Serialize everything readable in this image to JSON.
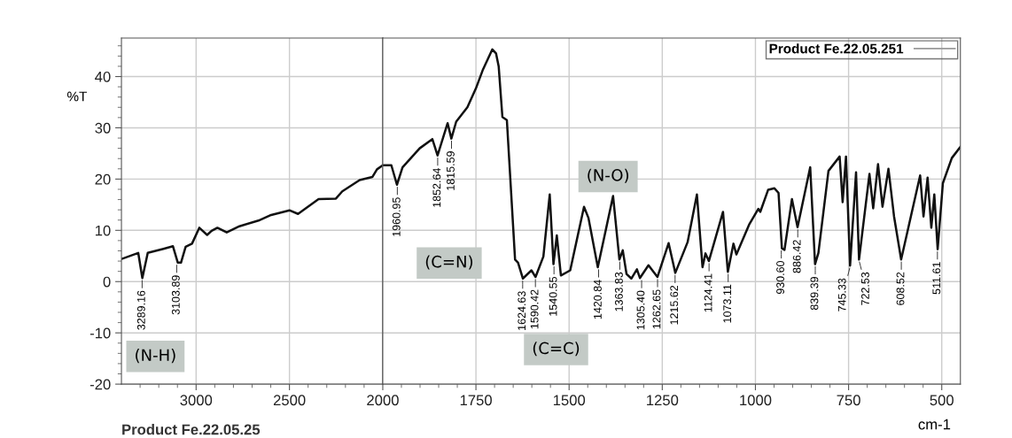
{
  "chart_data": [
    {
      "type": "line",
      "ylabel": "%T",
      "xlim": [
        3400,
        2000
      ],
      "ylim": [
        -20,
        47.5
      ],
      "xticks": [
        {
          "value": 3300,
          "label": null
        },
        {
          "value": 3200,
          "label": null
        },
        {
          "value": 3100,
          "label": null
        },
        3000,
        {
          "value": 2900,
          "label": null
        },
        {
          "value": 2800,
          "label": null
        },
        {
          "value": 2700,
          "label": null
        },
        {
          "value": 2600,
          "label": null
        },
        2500,
        {
          "value": 2400,
          "label": null
        },
        {
          "value": 2300,
          "label": null
        },
        {
          "value": 2200,
          "label": null
        },
        {
          "value": 2100,
          "label": null
        },
        2000
      ],
      "yticks": [
        -20,
        {
          "value": -18,
          "label": null
        },
        {
          "value": -16,
          "label": null
        },
        {
          "value": -14,
          "label": null
        },
        {
          "value": -12,
          "label": null
        },
        -10,
        {
          "value": -8,
          "label": null
        },
        {
          "value": -6,
          "label": null
        },
        {
          "value": -4,
          "label": null
        },
        {
          "value": -2,
          "label": null
        },
        0,
        {
          "value": 2,
          "label": null
        },
        {
          "value": 4,
          "label": null
        },
        {
          "value": 6,
          "label": null
        },
        {
          "value": 8,
          "label": null
        },
        10,
        {
          "value": 12,
          "label": null
        },
        {
          "value": 14,
          "label": null
        },
        {
          "value": 16,
          "label": null
        },
        {
          "value": 18,
          "label": null
        },
        20,
        {
          "value": 22,
          "label": null
        },
        {
          "value": 24,
          "label": null
        },
        {
          "value": 26,
          "label": null
        },
        {
          "value": 28,
          "label": null
        },
        30,
        {
          "value": 32,
          "label": null
        },
        {
          "value": 34,
          "label": null
        },
        {
          "value": 36,
          "label": null
        },
        {
          "value": 38,
          "label": null
        },
        40,
        {
          "value": 42,
          "label": null
        },
        {
          "value": 44,
          "label": null
        },
        {
          "value": 46,
          "label": null
        }
      ],
      "grid": true,
      "series": [
        {
          "color": "#111111",
          "x": [
            3400,
            3310,
            3288,
            3259,
            3175,
            3124,
            3098,
            3081,
            3056,
            3022,
            2983,
            2941,
            2917,
            2886,
            2836,
            2768,
            2666,
            2598,
            2500,
            2454,
            2344,
            2251,
            2217,
            2124,
            2056,
            2031,
            2000
          ],
          "values": [
            4.4,
            5.6,
            0.7,
            5.6,
            6.4,
            6.9,
            3.7,
            3.7,
            6.8,
            7.4,
            10.5,
            9.1,
            9.9,
            10.5,
            9.6,
            10.8,
            11.9,
            13.0,
            13.9,
            13.2,
            16.1,
            16.2,
            17.6,
            19.8,
            20.4,
            21.9,
            22.7
          ]
        }
      ],
      "annotations": [
        {
          "text": "3289.16",
          "x": 3289.16,
          "y": 0.7
        },
        {
          "text": "3103.89",
          "x": 3103.89,
          "y": 3.7
        },
        "(N-H)",
        "Product Fe.22.05.25"
      ]
    },
    {
      "type": "line",
      "xlabel": "cm-1",
      "xlim": [
        2000,
        450
      ],
      "ylim": [
        -20,
        47.5
      ],
      "tick_labels": "x",
      "xticks": [
        {
          "value": 1950,
          "label": null
        },
        {
          "value": 1900,
          "label": null
        },
        {
          "value": 1850,
          "label": null
        },
        {
          "value": 1800,
          "label": null
        },
        1750,
        {
          "value": 1700,
          "label": null
        },
        {
          "value": 1650,
          "label": null
        },
        {
          "value": 1600,
          "label": null
        },
        {
          "value": 1550,
          "label": null
        },
        1500,
        {
          "value": 1450,
          "label": null
        },
        {
          "value": 1400,
          "label": null
        },
        {
          "value": 1350,
          "label": null
        },
        {
          "value": 1300,
          "label": null
        },
        1250,
        {
          "value": 1200,
          "label": null
        },
        {
          "value": 1150,
          "label": null
        },
        {
          "value": 1100,
          "label": null
        },
        {
          "value": 1050,
          "label": null
        },
        1000,
        {
          "value": 950,
          "label": null
        },
        {
          "value": 900,
          "label": null
        },
        {
          "value": 850,
          "label": null
        },
        {
          "value": 800,
          "label": null
        },
        750,
        {
          "value": 700,
          "label": null
        },
        {
          "value": 650,
          "label": null
        },
        {
          "value": 600,
          "label": null
        },
        {
          "value": 550,
          "label": null
        },
        500
      ],
      "yticks": [
        -20,
        -10,
        0,
        10,
        20,
        30,
        40
      ],
      "grid": true,
      "legend": "top right",
      "series": [
        {
          "name": "Product Fe.22.05.251",
          "color": "#111111",
          "x": [
            2000,
            1977,
            1962,
            1947,
            1901,
            1867,
            1853,
            1826,
            1816,
            1803,
            1773,
            1750,
            1731,
            1706,
            1696,
            1689,
            1679,
            1667,
            1645,
            1637,
            1624,
            1601,
            1590,
            1569,
            1552,
            1542,
            1533,
            1522,
            1497,
            1460,
            1448,
            1423,
            1382,
            1365,
            1356,
            1346,
            1333,
            1318,
            1310,
            1287,
            1263,
            1233,
            1215,
            1182,
            1157,
            1142,
            1134,
            1125,
            1087,
            1074,
            1059,
            1051,
            1017,
            992,
            987,
            966,
            949,
            938,
            929,
            922,
            902,
            887,
            853,
            840,
            831,
            804,
            774,
            766,
            757,
            746,
            730,
            722,
            694,
            684,
            671,
            659,
            643,
            628,
            609,
            558,
            549,
            538,
            528,
            520,
            511,
            497,
            473,
            450
          ],
          "values": [
            22.7,
            22.7,
            18.9,
            22.3,
            26.0,
            27.8,
            24.6,
            30.9,
            27.9,
            31.2,
            34.0,
            37.7,
            41.4,
            45.3,
            44.5,
            42.0,
            32.1,
            31.5,
            4.3,
            3.7,
            0.6,
            2.2,
            0.9,
            4.9,
            17.0,
            3.4,
            9.0,
            1.2,
            2.2,
            14.6,
            12.4,
            2.8,
            16.7,
            4.3,
            6.1,
            1.5,
            0.6,
            2.4,
            0.7,
            3.2,
            0.9,
            7.5,
            1.7,
            7.7,
            17.0,
            2.8,
            5.5,
            4.0,
            13.6,
            1.9,
            7.4,
            5.3,
            11.1,
            14.2,
            13.6,
            17.9,
            18.2,
            17.3,
            6.5,
            6.2,
            16.1,
            10.6,
            22.3,
            3.4,
            5.6,
            21.6,
            24.4,
            15.5,
            24.4,
            3.1,
            21.3,
            4.3,
            21.0,
            14.3,
            22.9,
            14.6,
            22.0,
            12.7,
            4.3,
            20.7,
            12.7,
            20.3,
            10.5,
            17.0,
            6.3,
            19.2,
            24.1,
            26.3
          ]
        }
      ],
      "annotations": [
        {
          "text": "1960.95",
          "x": 1960.95,
          "y": 18.9
        },
        {
          "text": "1852.64",
          "x": 1852.64,
          "y": 24.6
        },
        {
          "text": "1815.59",
          "x": 1815.59,
          "y": 27.9
        },
        {
          "text": "1624.63",
          "x": 1624.63,
          "y": 0.6
        },
        {
          "text": "1590.42",
          "x": 1590.42,
          "y": 0.9
        },
        {
          "text": "1540.55",
          "x": 1540.55,
          "y": 3.4
        },
        {
          "text": "1420.84",
          "x": 1420.84,
          "y": 2.8
        },
        {
          "text": "1363.83",
          "x": 1363.83,
          "y": 4.3
        },
        {
          "text": "1305.40",
          "x": 1305.4,
          "y": 0.7
        },
        {
          "text": "1262.65",
          "x": 1262.65,
          "y": 0.9
        },
        {
          "text": "1215.62",
          "x": 1215.62,
          "y": 1.7
        },
        {
          "text": "1124.41",
          "x": 1124.41,
          "y": 4.0
        },
        {
          "text": "1073.11",
          "x": 1073.11,
          "y": 1.9
        },
        {
          "text": "930.60",
          "x": 930.6,
          "y": 6.5
        },
        {
          "text": "886.42",
          "x": 886.42,
          "y": 10.6
        },
        {
          "text": "839.39",
          "x": 839.39,
          "y": 3.4
        },
        {
          "text": "745.33",
          "x": 745.33,
          "y": 3.1
        },
        {
          "text": "722.53",
          "x": 722.53,
          "y": 4.3
        },
        {
          "text": "608.52",
          "x": 608.52,
          "y": 4.3
        },
        {
          "text": "511.61",
          "x": 511.61,
          "y": 6.3
        },
        "(C=N)",
        "(C=C)",
        "(N-O)"
      ]
    }
  ]
}
